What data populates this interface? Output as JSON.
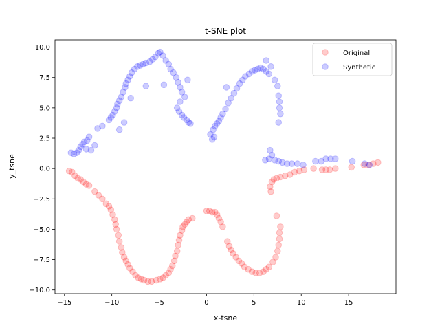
{
  "chart_data": {
    "type": "scatter",
    "title": "t-SNE plot",
    "xlabel": "x-tsne",
    "ylabel": "y_tsne",
    "xlim": [
      -16,
      20
    ],
    "ylim": [
      -10.3,
      10.6
    ],
    "xticks": [
      -15,
      -10,
      -5,
      0,
      5,
      10,
      15
    ],
    "yticks": [
      -10.0,
      -7.5,
      -5.0,
      -2.5,
      0.0,
      2.5,
      5.0,
      7.5,
      10.0
    ],
    "xtick_labels": [
      "−15",
      "−10",
      "−5",
      "0",
      "5",
      "10",
      "15"
    ],
    "ytick_labels": [
      "−10.0",
      "−7.5",
      "−5.0",
      "−2.5",
      "0.0",
      "2.5",
      "5.0",
      "7.5",
      "10.0"
    ],
    "legend": {
      "placement": "upper-right",
      "entries": [
        "Original",
        "Synthetic"
      ]
    },
    "point_alpha": 0.2,
    "series": [
      {
        "name": "Original",
        "color": "#ff0000",
        "points": [
          [
            -14.5,
            -0.2
          ],
          [
            -14.2,
            -0.3
          ],
          [
            -13.9,
            -0.6
          ],
          [
            -13.6,
            -0.8
          ],
          [
            -13.3,
            -0.9
          ],
          [
            -13.0,
            -1.1
          ],
          [
            -12.7,
            -1.3
          ],
          [
            -12.4,
            -1.4
          ],
          [
            -11.8,
            -1.9
          ],
          [
            -11.4,
            -2.2
          ],
          [
            -11.0,
            -2.5
          ],
          [
            -10.6,
            -2.9
          ],
          [
            -10.3,
            -3.1
          ],
          [
            -10.1,
            -3.4
          ],
          [
            -9.9,
            -3.8
          ],
          [
            -9.7,
            -4.2
          ],
          [
            -9.6,
            -4.6
          ],
          [
            -9.5,
            -5.0
          ],
          [
            -9.3,
            -5.5
          ],
          [
            -9.2,
            -6.0
          ],
          [
            -9.0,
            -6.5
          ],
          [
            -8.9,
            -6.9
          ],
          [
            -8.7,
            -7.3
          ],
          [
            -8.5,
            -7.6
          ],
          [
            -8.3,
            -7.9
          ],
          [
            -8.1,
            -8.2
          ],
          [
            -7.8,
            -8.5
          ],
          [
            -7.5,
            -8.8
          ],
          [
            -7.2,
            -9.0
          ],
          [
            -6.9,
            -9.1
          ],
          [
            -6.6,
            -9.2
          ],
          [
            -6.2,
            -9.3
          ],
          [
            -5.8,
            -9.3
          ],
          [
            -5.3,
            -9.2
          ],
          [
            -4.9,
            -9.1
          ],
          [
            -4.6,
            -9.0
          ],
          [
            -4.3,
            -8.8
          ],
          [
            -4.0,
            -8.6
          ],
          [
            -3.8,
            -8.3
          ],
          [
            -3.6,
            -8.0
          ],
          [
            -3.4,
            -7.6
          ],
          [
            -3.3,
            -7.2
          ],
          [
            -3.1,
            -6.8
          ],
          [
            -3.0,
            -6.3
          ],
          [
            -2.9,
            -5.9
          ],
          [
            -2.8,
            -5.5
          ],
          [
            -2.6,
            -5.1
          ],
          [
            -2.5,
            -4.8
          ],
          [
            -2.3,
            -4.6
          ],
          [
            -2.1,
            -4.4
          ],
          [
            -1.9,
            -4.2
          ],
          [
            -1.5,
            -4.1
          ],
          [
            0.0,
            -3.5
          ],
          [
            0.3,
            -3.5
          ],
          [
            0.6,
            -3.6
          ],
          [
            0.9,
            -3.6
          ],
          [
            1.1,
            -3.8
          ],
          [
            1.3,
            -4.1
          ],
          [
            1.5,
            -4.4
          ],
          [
            1.7,
            -4.8
          ],
          [
            2.2,
            -6.0
          ],
          [
            2.4,
            -6.4
          ],
          [
            2.6,
            -6.7
          ],
          [
            2.8,
            -7.0
          ],
          [
            3.1,
            -7.3
          ],
          [
            3.4,
            -7.6
          ],
          [
            3.7,
            -7.8
          ],
          [
            4.0,
            -8.1
          ],
          [
            4.4,
            -8.3
          ],
          [
            4.8,
            -8.5
          ],
          [
            5.2,
            -8.6
          ],
          [
            5.6,
            -8.6
          ],
          [
            6.0,
            -8.5
          ],
          [
            6.3,
            -8.3
          ],
          [
            6.6,
            -8.1
          ],
          [
            7.0,
            -7.7
          ],
          [
            7.3,
            -7.3
          ],
          [
            7.5,
            -6.8
          ],
          [
            7.6,
            -6.3
          ],
          [
            7.7,
            -5.8
          ],
          [
            7.7,
            -5.3
          ],
          [
            7.8,
            -4.8
          ],
          [
            7.4,
            -3.9
          ],
          [
            6.8,
            -1.9
          ],
          [
            6.7,
            -1.5
          ],
          [
            6.9,
            -1.1
          ],
          [
            7.1,
            -0.9
          ],
          [
            7.4,
            -0.8
          ],
          [
            7.8,
            -0.7
          ],
          [
            8.3,
            -0.6
          ],
          [
            8.8,
            -0.5
          ],
          [
            9.3,
            -0.3
          ],
          [
            9.8,
            -0.2
          ],
          [
            10.3,
            -0.1
          ],
          [
            11.3,
            0.0
          ],
          [
            12.2,
            -0.1
          ],
          [
            12.6,
            -0.1
          ],
          [
            13.0,
            -0.1
          ],
          [
            13.6,
            0.0
          ],
          [
            15.3,
            0.1
          ],
          [
            16.6,
            0.3
          ],
          [
            17.1,
            0.3
          ],
          [
            17.6,
            0.4
          ],
          [
            18.1,
            0.5
          ]
        ]
      },
      {
        "name": "Synthetic",
        "color": "#0000ff",
        "points": [
          [
            -14.3,
            1.3
          ],
          [
            -14.0,
            1.2
          ],
          [
            -13.7,
            1.3
          ],
          [
            -13.5,
            1.5
          ],
          [
            -13.3,
            1.8
          ],
          [
            -13.1,
            2.0
          ],
          [
            -12.9,
            2.2
          ],
          [
            -12.6,
            2.3
          ],
          [
            -12.4,
            2.6
          ],
          [
            -12.7,
            1.6
          ],
          [
            -12.2,
            1.5
          ],
          [
            -11.8,
            1.9
          ],
          [
            -11.5,
            3.3
          ],
          [
            -11.0,
            3.5
          ],
          [
            -10.3,
            4.0
          ],
          [
            -10.1,
            4.2
          ],
          [
            -9.9,
            4.4
          ],
          [
            -9.7,
            4.7
          ],
          [
            -9.5,
            5.0
          ],
          [
            -9.4,
            5.3
          ],
          [
            -9.2,
            5.6
          ],
          [
            -9.0,
            5.9
          ],
          [
            -8.8,
            6.3
          ],
          [
            -8.6,
            6.7
          ],
          [
            -8.5,
            7.0
          ],
          [
            -8.3,
            7.3
          ],
          [
            -8.1,
            7.6
          ],
          [
            -7.9,
            7.9
          ],
          [
            -7.6,
            8.2
          ],
          [
            -7.3,
            8.4
          ],
          [
            -7.0,
            8.5
          ],
          [
            -6.7,
            8.6
          ],
          [
            -6.4,
            8.7
          ],
          [
            -6.0,
            8.8
          ],
          [
            -5.7,
            9.0
          ],
          [
            -5.4,
            9.2
          ],
          [
            -5.1,
            9.5
          ],
          [
            -4.9,
            9.6
          ],
          [
            -4.6,
            9.3
          ],
          [
            -4.3,
            8.9
          ],
          [
            -4.0,
            8.6
          ],
          [
            -3.8,
            8.2
          ],
          [
            -3.5,
            7.9
          ],
          [
            -3.2,
            7.5
          ],
          [
            -3.0,
            7.1
          ],
          [
            -2.8,
            6.7
          ],
          [
            -2.6,
            6.3
          ],
          [
            -2.8,
            5.5
          ],
          [
            -3.1,
            5.0
          ],
          [
            -2.9,
            4.7
          ],
          [
            -2.6,
            4.4
          ],
          [
            -2.4,
            4.2
          ],
          [
            -2.1,
            4.0
          ],
          [
            -1.9,
            3.8
          ],
          [
            -1.7,
            3.7
          ],
          [
            -9.2,
            3.2
          ],
          [
            -8.7,
            3.8
          ],
          [
            -8.0,
            5.8
          ],
          [
            -6.4,
            6.8
          ],
          [
            -4.5,
            6.9
          ],
          [
            -2.3,
            5.9
          ],
          [
            -2.0,
            7.3
          ],
          [
            0.4,
            2.8
          ],
          [
            0.6,
            2.4
          ],
          [
            0.8,
            2.6
          ],
          [
            0.7,
            3.2
          ],
          [
            0.9,
            3.5
          ],
          [
            1.1,
            3.7
          ],
          [
            1.3,
            3.9
          ],
          [
            1.5,
            4.2
          ],
          [
            1.7,
            4.5
          ],
          [
            2.0,
            4.9
          ],
          [
            2.3,
            5.4
          ],
          [
            2.6,
            5.8
          ],
          [
            2.9,
            6.2
          ],
          [
            3.2,
            6.6
          ],
          [
            3.5,
            7.0
          ],
          [
            3.8,
            7.3
          ],
          [
            4.1,
            7.6
          ],
          [
            4.5,
            7.8
          ],
          [
            4.8,
            8.0
          ],
          [
            5.1,
            8.1
          ],
          [
            5.4,
            8.2
          ],
          [
            5.7,
            8.3
          ],
          [
            6.0,
            8.2
          ],
          [
            6.3,
            8.0
          ],
          [
            6.6,
            7.8
          ],
          [
            6.8,
            8.4
          ],
          [
            6.3,
            8.9
          ],
          [
            7.2,
            7.3
          ],
          [
            7.5,
            6.8
          ],
          [
            7.6,
            6.0
          ],
          [
            7.7,
            5.5
          ],
          [
            7.7,
            5.0
          ],
          [
            7.8,
            4.5
          ],
          [
            7.6,
            3.8
          ],
          [
            2.1,
            6.7
          ],
          [
            6.2,
            0.7
          ],
          [
            6.6,
            0.8
          ],
          [
            6.7,
            1.5
          ],
          [
            6.9,
            1.1
          ],
          [
            7.2,
            0.7
          ],
          [
            7.6,
            0.6
          ],
          [
            8.0,
            0.5
          ],
          [
            8.5,
            0.4
          ],
          [
            9.0,
            0.4
          ],
          [
            9.6,
            0.4
          ],
          [
            10.2,
            0.3
          ],
          [
            11.5,
            0.6
          ],
          [
            12.1,
            0.6
          ],
          [
            12.6,
            0.8
          ],
          [
            13.1,
            0.8
          ],
          [
            13.6,
            0.8
          ],
          [
            15.4,
            0.6
          ],
          [
            16.7,
            0.4
          ],
          [
            17.2,
            0.3
          ]
        ]
      }
    ]
  }
}
